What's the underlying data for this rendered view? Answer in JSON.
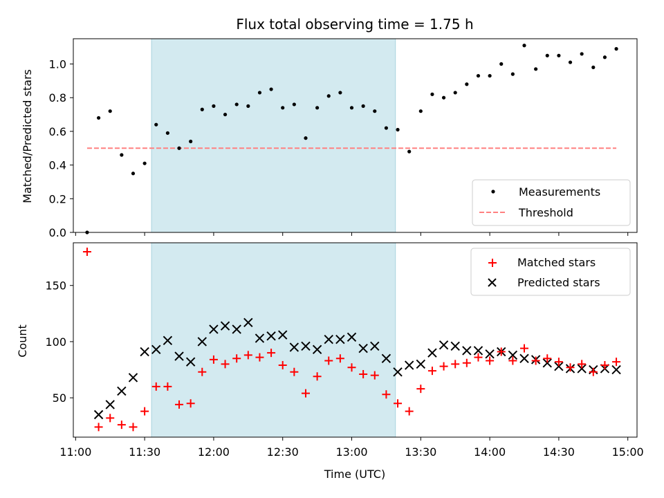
{
  "chart_data": {
    "type": "scatter",
    "title": "Flux total observing time = 1.75 h",
    "xlabel": "Time (UTC)",
    "x_ticks": [
      "11:00",
      "11:30",
      "12:00",
      "12:30",
      "13:00",
      "13:30",
      "14:00",
      "14:30",
      "15:00"
    ],
    "x_range": [
      "10:59",
      "15:04"
    ],
    "shaded_interval": [
      "11:33",
      "13:19"
    ],
    "shade_color": "#d3eaf0",
    "times": [
      "11:05",
      "11:10",
      "11:15",
      "11:20",
      "11:25",
      "11:30",
      "11:35",
      "11:40",
      "11:45",
      "11:50",
      "11:55",
      "12:00",
      "12:05",
      "12:10",
      "12:15",
      "12:20",
      "12:25",
      "12:30",
      "12:35",
      "12:40",
      "12:45",
      "12:50",
      "12:55",
      "13:00",
      "13:05",
      "13:10",
      "13:15",
      "13:20",
      "13:25",
      "13:30",
      "13:35",
      "13:40",
      "13:45",
      "13:50",
      "13:55",
      "14:00",
      "14:05",
      "14:10",
      "14:15",
      "14:20",
      "14:25",
      "14:30",
      "14:35",
      "14:40",
      "14:45",
      "14:50",
      "14:55"
    ],
    "top": {
      "ylabel": "Matched/Predicted stars",
      "ylim": [
        0,
        1.15
      ],
      "y_ticks": [
        "0.0",
        "0.2",
        "0.4",
        "0.6",
        "0.8",
        "1.0"
      ],
      "measurements": [
        0.0,
        0.68,
        0.72,
        0.46,
        0.35,
        0.41,
        0.64,
        0.59,
        0.5,
        0.54,
        0.73,
        0.75,
        0.7,
        0.76,
        0.75,
        0.83,
        0.85,
        0.74,
        0.76,
        0.56,
        0.74,
        0.81,
        0.83,
        0.74,
        0.75,
        0.72,
        0.62,
        0.61,
        0.48,
        0.72,
        0.82,
        0.8,
        0.83,
        0.88,
        0.93,
        0.93,
        1.0,
        0.94,
        1.11,
        0.97,
        1.05,
        1.05,
        1.01,
        1.06,
        0.98,
        1.04,
        1.09
      ],
      "threshold": {
        "value": 0.5,
        "x_range": [
          "11:05",
          "14:55"
        ],
        "color": "#ff8080"
      },
      "legend": {
        "placement": "lower-right",
        "entries": [
          "Measurements",
          "Threshold"
        ]
      }
    },
    "bottom": {
      "ylabel": "Count",
      "ylim": [
        15,
        188
      ],
      "y_ticks": [
        "50",
        "100",
        "150"
      ],
      "matched": [
        180,
        24,
        32,
        26,
        24,
        38,
        60,
        60,
        44,
        45,
        73,
        84,
        80,
        85,
        88,
        86,
        90,
        79,
        73,
        54,
        69,
        83,
        85,
        77,
        71,
        70,
        53,
        45,
        38,
        58,
        74,
        78,
        80,
        81,
        86,
        83,
        91,
        83,
        94,
        83,
        85,
        82,
        77,
        80,
        73,
        79,
        82
      ],
      "predicted": [
        null,
        35,
        44,
        56,
        68,
        91,
        93,
        101,
        87,
        82,
        100,
        111,
        114,
        111,
        117,
        103,
        105,
        106,
        95,
        96,
        93,
        102,
        102,
        104,
        94,
        96,
        85,
        73,
        79,
        80,
        90,
        97,
        96,
        92,
        92,
        89,
        91,
        88,
        85,
        84,
        81,
        78,
        76,
        76,
        75,
        76,
        75
      ],
      "legend": {
        "placement": "upper-right",
        "entries": [
          "Matched stars",
          "Predicted stars"
        ]
      },
      "matched_color": "#ff0000",
      "predicted_color": "#000000"
    }
  }
}
